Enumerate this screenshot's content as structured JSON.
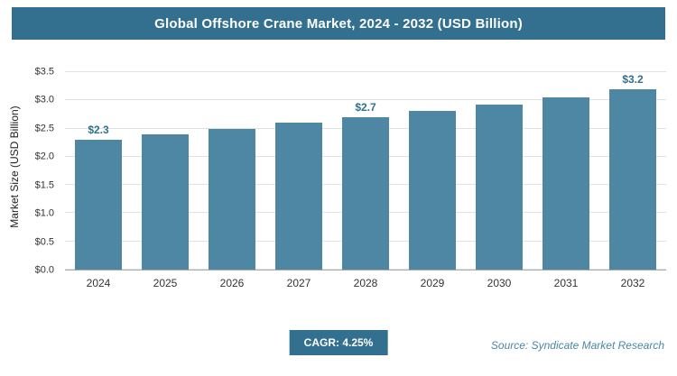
{
  "title": "Global Offshore Crane Market, 2024 - 2032 (USD Billion)",
  "footer": {
    "cagr_label": "CAGR: 4.25%",
    "source": "Source: Syndicate Market Research"
  },
  "colors": {
    "banner": "#33708f",
    "bar": "#4e87a3",
    "value_label": "#31708f"
  },
  "chart_data": {
    "type": "bar",
    "title": "Global Offshore Crane Market, 2024 - 2032 (USD Billion)",
    "categories": [
      "2024",
      "2025",
      "2026",
      "2027",
      "2028",
      "2029",
      "2030",
      "2031",
      "2032"
    ],
    "values": [
      2.3,
      2.4,
      2.5,
      2.6,
      2.7,
      2.82,
      2.93,
      3.06,
      3.2
    ],
    "value_labels": [
      "$2.3",
      "",
      "",
      "",
      "$2.7",
      "",
      "",
      "",
      "$3.2"
    ],
    "xlabel": "",
    "ylabel": "Market Size (USD Billion)",
    "ylim": [
      0,
      3.5
    ],
    "ytick_values": [
      0,
      0.5,
      1,
      1.5,
      2,
      2.5,
      3,
      3.5
    ],
    "yticks": [
      "$0.0",
      "$0.5",
      "$1.0",
      "$1.5",
      "$2.0",
      "$2.5",
      "$3.0",
      "$3.5"
    ],
    "grid": true,
    "legend": false,
    "bar_color": "#4e87a3"
  }
}
